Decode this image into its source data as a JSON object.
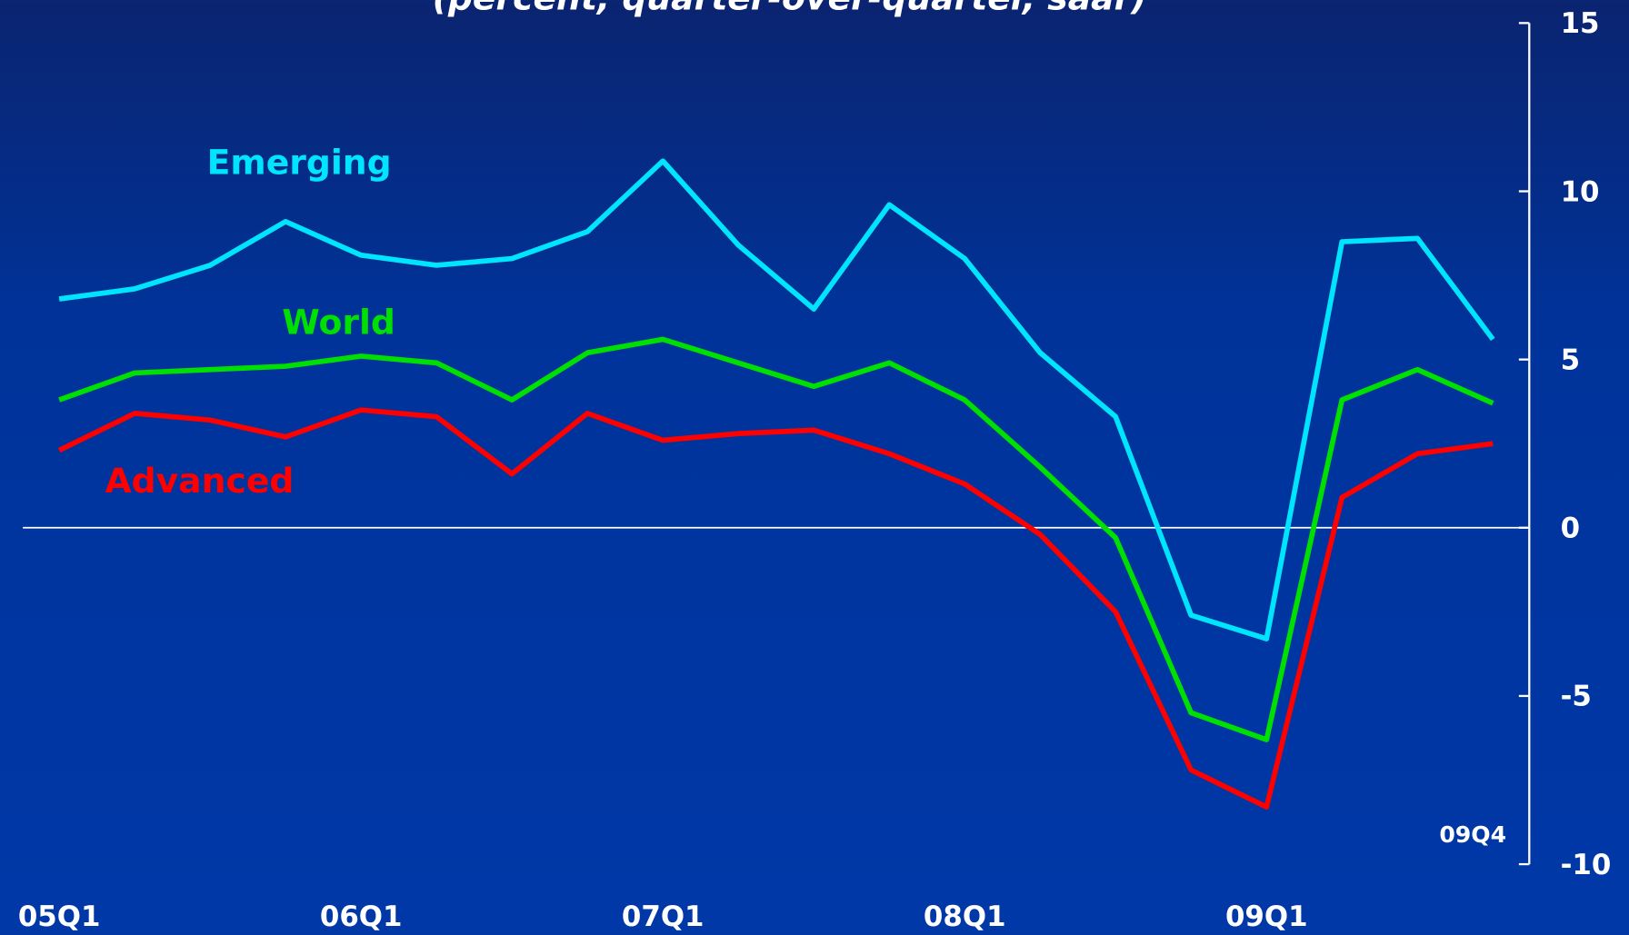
{
  "chart_data": {
    "type": "line",
    "subtitle": "(percent, quarter-over-quarter, saar)",
    "categories": [
      "05Q1",
      null,
      null,
      null,
      "06Q1",
      null,
      null,
      null,
      "07Q1",
      null,
      null,
      null,
      "08Q1",
      null,
      null,
      null,
      "09Q1",
      null,
      null,
      null
    ],
    "series": [
      {
        "name": "Emerging",
        "color": "#00e5ff",
        "values": [
          6.8,
          7.1,
          7.8,
          9.1,
          8.1,
          7.8,
          8.0,
          8.8,
          10.9,
          8.4,
          6.5,
          9.6,
          8.0,
          5.2,
          3.3,
          -2.6,
          -3.3,
          8.5,
          8.6,
          5.6
        ]
      },
      {
        "name": "World",
        "color": "#00e000",
        "values": [
          3.8,
          4.6,
          4.7,
          4.8,
          5.1,
          4.9,
          3.8,
          5.2,
          5.6,
          4.9,
          4.2,
          4.9,
          3.8,
          1.8,
          -0.3,
          -5.5,
          -6.3,
          3.8,
          4.7,
          3.7
        ]
      },
      {
        "name": "Advanced",
        "color": "#ff0000",
        "values": [
          2.3,
          3.4,
          3.2,
          2.7,
          3.5,
          3.3,
          1.6,
          3.4,
          2.6,
          2.8,
          2.9,
          2.2,
          1.3,
          -0.2,
          -2.5,
          -7.2,
          -8.3,
          0.9,
          2.2,
          2.5
        ]
      }
    ],
    "annotation": "09Q4",
    "ylim": [
      -10,
      15
    ],
    "yticks": [
      15,
      10,
      5,
      0,
      -5,
      -10
    ],
    "y_axis_side": "right"
  }
}
